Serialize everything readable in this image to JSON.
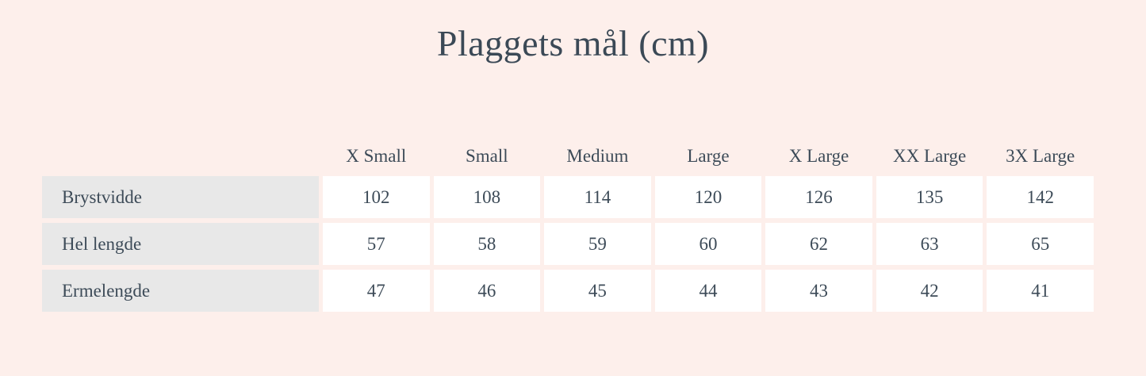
{
  "title": "Plaggets mål (cm)",
  "colors": {
    "background": "#fdefeb",
    "label_cell_background": "#e8e8e8",
    "value_cell_background": "#ffffff",
    "text": "#3d4b58"
  },
  "table": {
    "columns": [
      "X Small",
      "Small",
      "Medium",
      "Large",
      "X Large",
      "XX Large",
      "3X Large"
    ],
    "rows": [
      {
        "label": "Brystvidde",
        "values": [
          "102",
          "108",
          "114",
          "120",
          "126",
          "135",
          "142"
        ]
      },
      {
        "label": "Hel lengde",
        "values": [
          "57",
          "58",
          "59",
          "60",
          "62",
          "63",
          "65"
        ]
      },
      {
        "label": "Ermelengde",
        "values": [
          "47",
          "46",
          "45",
          "44",
          "43",
          "42",
          "41"
        ]
      }
    ]
  },
  "chart_data": {
    "type": "table",
    "title": "Plaggets mål (cm)",
    "columns": [
      "X Small",
      "Small",
      "Medium",
      "Large",
      "X Large",
      "XX Large",
      "3X Large"
    ],
    "rows": [
      {
        "label": "Brystvidde",
        "values": [
          102,
          108,
          114,
          120,
          126,
          135,
          142
        ]
      },
      {
        "label": "Hel lengde",
        "values": [
          57,
          58,
          59,
          60,
          62,
          63,
          65
        ]
      },
      {
        "label": "Ermelengde",
        "values": [
          47,
          46,
          45,
          44,
          43,
          42,
          41
        ]
      }
    ]
  }
}
